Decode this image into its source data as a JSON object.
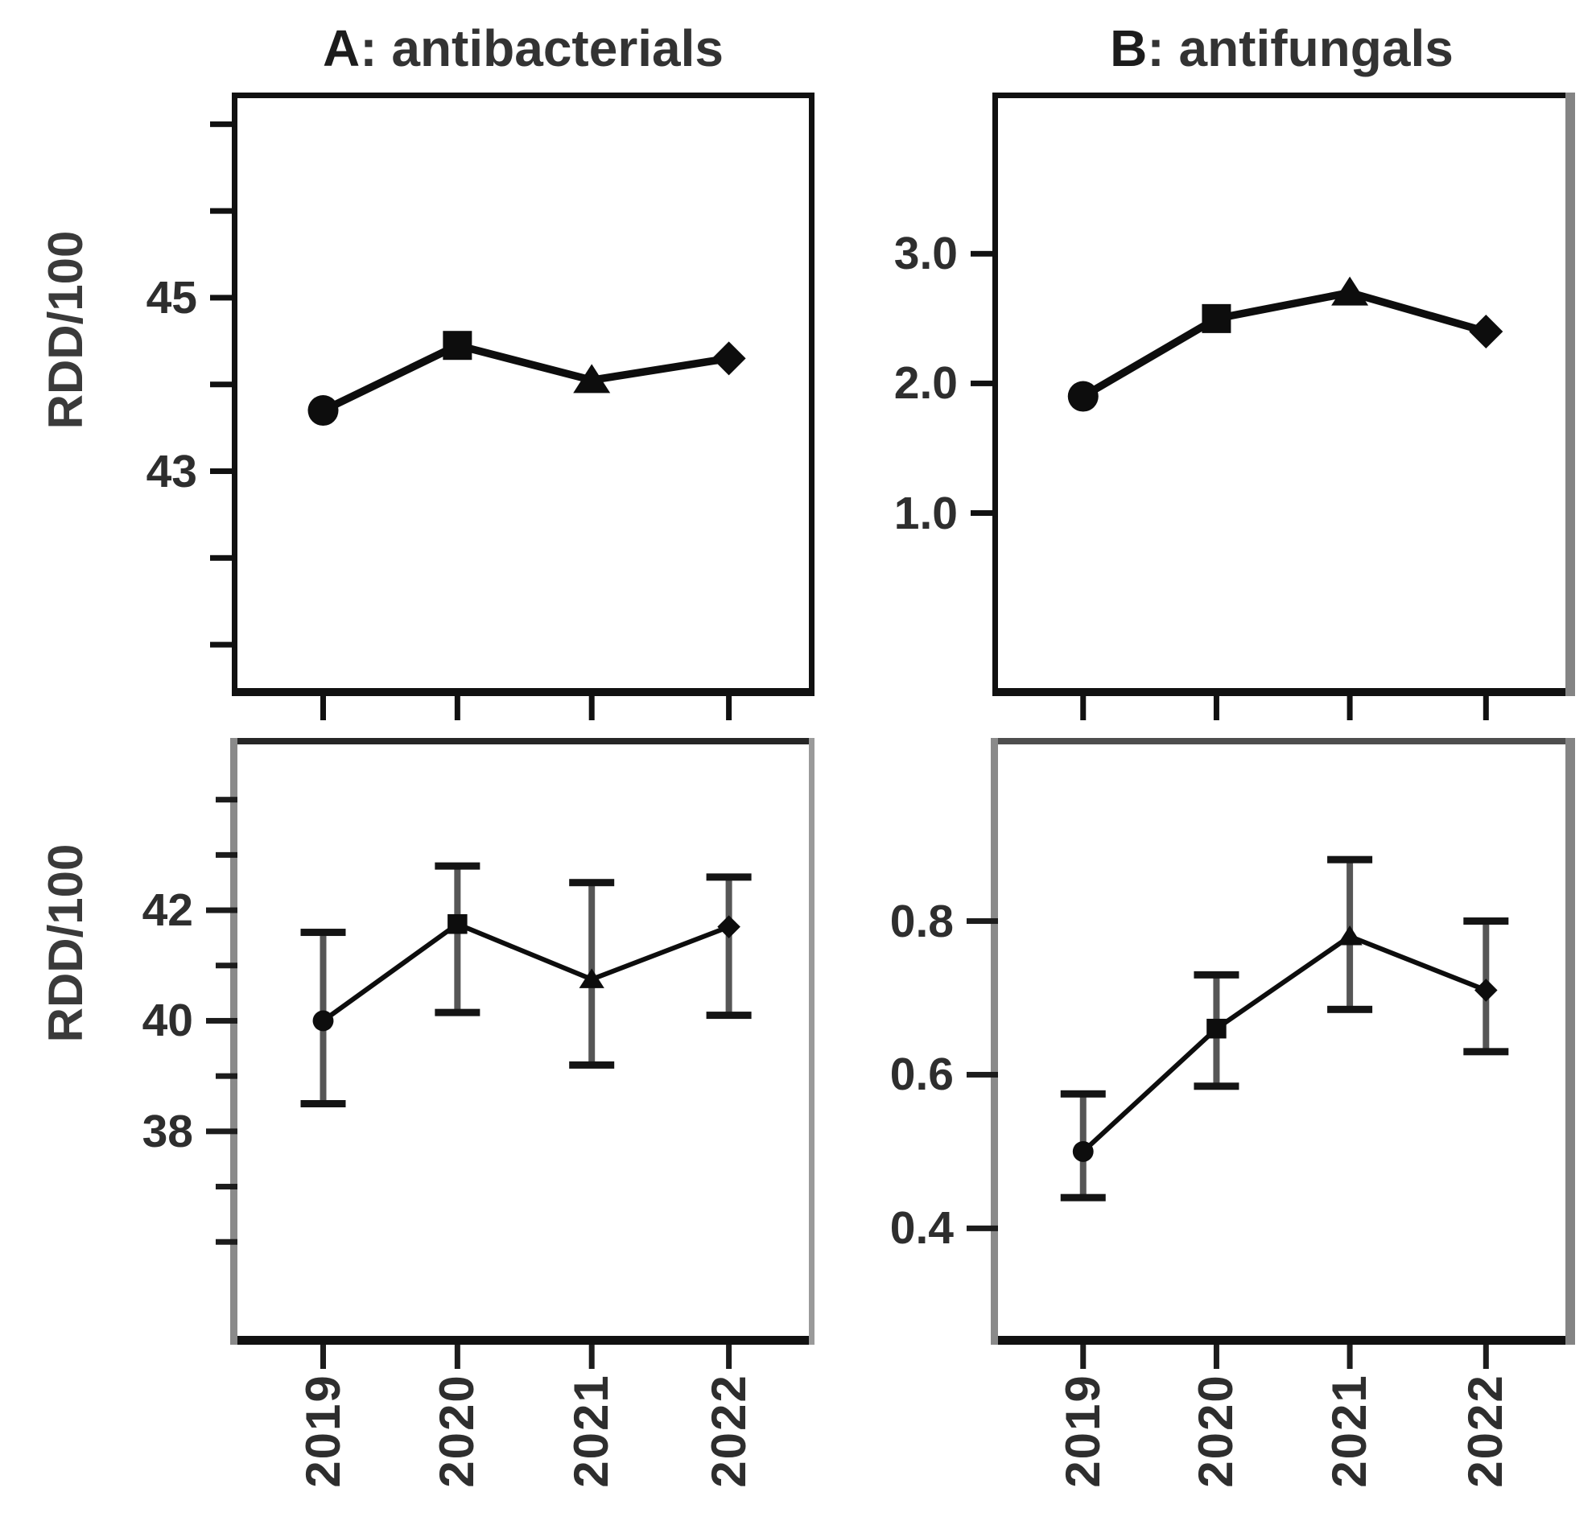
{
  "figure": {
    "background": "#ffffff",
    "x_axis_shared_label_rows": 1,
    "grid": false,
    "legend": "none"
  },
  "colors": {
    "line": "#0d0d0d",
    "marker": "#0d0d0d",
    "error_stem": "#565656",
    "error_cap": "#141414",
    "text": "#2e2e2e",
    "spine": "#141414",
    "spine_gray": "#838383",
    "background": "#ffffff"
  },
  "chart_data": [
    {
      "id": "antibacterials-trend",
      "type": "line",
      "position": "top-left",
      "title_prefix": "A",
      "title_rest": ": antibacterials",
      "ylabel": "RDD/100",
      "x": [
        "2019",
        "2020",
        "2021",
        "2022"
      ],
      "values": [
        43.7,
        44.45,
        44.05,
        44.3
      ],
      "markers": [
        "circle",
        "square",
        "triangle",
        "diamond"
      ],
      "ylim": [
        40.5,
        47.3
      ],
      "yticks": [
        {
          "v": 41
        },
        {
          "v": 42
        },
        {
          "v": 43,
          "label": "43"
        },
        {
          "v": 44
        },
        {
          "v": 45,
          "label": "45"
        },
        {
          "v": 46
        },
        {
          "v": 47
        }
      ],
      "x_axis_labels_shown": false,
      "error_bars": false,
      "grid": false,
      "legend": "none"
    },
    {
      "id": "antifungals-trend",
      "type": "line",
      "position": "top-right",
      "title_prefix": "B",
      "title_rest": ": antifungals",
      "ylabel": "",
      "x": [
        "2019",
        "2020",
        "2021",
        "2022"
      ],
      "values": [
        1.9,
        2.5,
        2.7,
        2.4
      ],
      "markers": [
        "circle",
        "square",
        "triangle",
        "diamond"
      ],
      "ylim": [
        -0.35,
        4.2
      ],
      "yticks": [
        {
          "v": 1.0,
          "label": "1.0"
        },
        {
          "v": 2.0,
          "label": "2.0"
        },
        {
          "v": 3.0,
          "label": "3.0"
        }
      ],
      "x_axis_labels_shown": false,
      "error_bars": false,
      "grid": false,
      "legend": "none"
    },
    {
      "id": "antibacterials-errorbar",
      "type": "line",
      "position": "bottom-left",
      "title_prefix": "",
      "title_rest": "",
      "ylabel": "RDD/100",
      "x": [
        "2019",
        "2020",
        "2021",
        "2022"
      ],
      "values": [
        40.0,
        41.75,
        40.75,
        41.7
      ],
      "err_low": [
        38.5,
        40.15,
        39.2,
        40.1
      ],
      "err_high": [
        41.6,
        42.8,
        42.5,
        42.6
      ],
      "markers": [
        "circle",
        "square",
        "triangle",
        "diamond"
      ],
      "ylim": [
        34.3,
        45.0
      ],
      "yticks": [
        {
          "v": 36
        },
        {
          "v": 37
        },
        {
          "v": 38,
          "label": "38"
        },
        {
          "v": 39
        },
        {
          "v": 40,
          "label": "40"
        },
        {
          "v": 41
        },
        {
          "v": 42,
          "label": "42"
        },
        {
          "v": 43
        },
        {
          "v": 44
        }
      ],
      "x_axis_labels_shown": true,
      "error_bars": true,
      "grid": false,
      "legend": "none"
    },
    {
      "id": "antifungals-errorbar",
      "type": "line",
      "position": "bottom-right",
      "title_prefix": "",
      "title_rest": "",
      "ylabel": "",
      "x": [
        "2019",
        "2020",
        "2021",
        "2022"
      ],
      "values": [
        0.5,
        0.66,
        0.78,
        0.71
      ],
      "err_low": [
        0.44,
        0.585,
        0.685,
        0.63
      ],
      "err_high": [
        0.575,
        0.73,
        0.88,
        0.8
      ],
      "markers": [
        "circle",
        "square",
        "triangle",
        "diamond"
      ],
      "ylim": [
        0.26,
        1.03
      ],
      "yticks": [
        {
          "v": 0.4,
          "label": "0.4"
        },
        {
          "v": 0.6,
          "label": "0.6"
        },
        {
          "v": 0.8,
          "label": "0.8"
        }
      ],
      "x_axis_labels_shown": true,
      "error_bars": true,
      "grid": false,
      "legend": "none"
    }
  ]
}
